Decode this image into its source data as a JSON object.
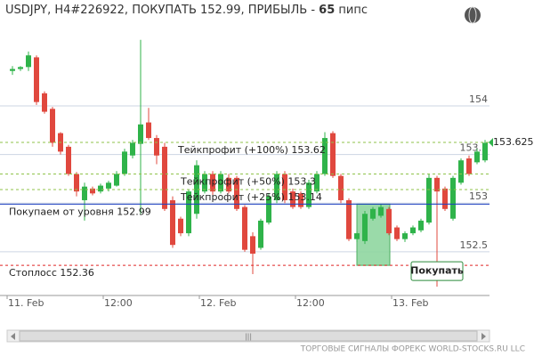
{
  "chart_data": {
    "type": "candlestick",
    "title": "USDJPY, H4#226922, ПОКУПАТЬ 152.99, ПРИБЫЛЬ -",
    "profit_pips": 65,
    "profit_unit": "пипс",
    "categories": [
      "11. Feb",
      null,
      null,
      null,
      null,
      null,
      null,
      null,
      null,
      null,
      null,
      null,
      "12:00",
      null,
      null,
      null,
      null,
      null,
      null,
      null,
      null,
      null,
      null,
      null,
      "12. Feb",
      null,
      null,
      null,
      null,
      null,
      null,
      null,
      null,
      null,
      null,
      null,
      "12:00",
      null,
      null,
      null,
      null,
      null,
      null,
      null,
      null,
      null,
      null,
      null,
      "13. Feb",
      null,
      null,
      null,
      null,
      null,
      null,
      null,
      null,
      null,
      null,
      null
    ],
    "open": [
      154.36,
      154.38,
      154.4,
      154.5,
      154.13,
      153.97,
      153.72,
      153.58,
      153.3,
      153.03,
      153.15,
      153.12,
      153.15,
      153.18,
      153.3,
      153.49,
      153.61,
      153.83,
      153.67,
      153.58,
      153.03,
      152.84,
      152.69,
      152.89,
      153.12,
      153.3,
      153.12,
      153.26,
      153.26,
      152.96,
      152.66,
      152.54,
      152.8,
      153.03,
      153.3,
      153.12,
      153.1,
      152.96,
      153.12,
      153.3,
      153.72,
      153.28,
      153.03,
      152.63,
      152.61,
      152.84,
      152.87,
      152.94,
      152.75,
      152.63,
      152.69,
      152.72,
      152.8,
      153.26,
      153.15,
      152.84,
      153.21,
      153.46,
      153.42,
      153.44
    ],
    "high": [
      154.41,
      154.41,
      154.56,
      154.52,
      154.15,
      153.99,
      153.73,
      153.6,
      153.32,
      153.21,
      153.17,
      153.2,
      153.23,
      153.33,
      153.56,
      153.65,
      154.68,
      153.98,
      153.7,
      153.62,
      153.07,
      152.86,
      153.14,
      153.44,
      153.33,
      153.33,
      153.33,
      153.3,
      153.28,
      152.98,
      152.7,
      152.84,
      153.1,
      153.33,
      153.33,
      153.15,
      153.12,
      153.24,
      153.33,
      153.73,
      153.74,
      153.3,
      153.05,
      152.71,
      152.92,
      152.96,
      152.99,
      152.96,
      152.77,
      152.71,
      152.77,
      152.84,
      153.3,
      153.28,
      153.17,
      153.28,
      153.46,
      153.49,
      153.56,
      153.65
    ],
    "low": [
      154.32,
      154.36,
      154.36,
      154.01,
      153.92,
      153.58,
      153.5,
      153.28,
      153.07,
      152.82,
      153.08,
      153.1,
      153.12,
      153.17,
      153.28,
      153.46,
      152.89,
      153.65,
      153.4,
      152.92,
      152.54,
      152.66,
      152.66,
      152.84,
      153.1,
      153.08,
      153.1,
      153.1,
      152.92,
      152.5,
      152.27,
      152.52,
      152.78,
      153.0,
      153.0,
      152.94,
      152.94,
      152.94,
      153.1,
      153.28,
      153.26,
      153.0,
      152.61,
      152.6,
      152.58,
      152.82,
      152.85,
      152.67,
      152.61,
      152.6,
      152.67,
      152.7,
      152.78,
      152.14,
      152.92,
      152.82,
      153.19,
      153.28,
      153.4,
      153.42
    ],
    "close": [
      154.38,
      154.4,
      154.52,
      154.04,
      153.94,
      153.62,
      153.53,
      153.3,
      153.12,
      153.17,
      153.1,
      153.18,
      153.21,
      153.3,
      153.53,
      153.62,
      153.81,
      153.67,
      153.49,
      152.94,
      152.57,
      152.69,
      153.12,
      153.39,
      153.3,
      153.12,
      153.3,
      153.12,
      152.94,
      152.52,
      152.48,
      152.82,
      153.07,
      153.3,
      153.03,
      152.96,
      152.96,
      153.21,
      153.3,
      153.67,
      153.28,
      153.03,
      152.63,
      152.69,
      152.89,
      152.94,
      152.96,
      152.69,
      152.63,
      152.69,
      152.75,
      152.82,
      153.26,
      153.12,
      152.94,
      153.26,
      153.44,
      153.3,
      153.53,
      153.62
    ],
    "up_color": "#2fb34a",
    "down_color": "#e0483e",
    "ylim": [
      152.05,
      154.87
    ],
    "yticks": [
      152.5,
      153,
      153.5,
      154
    ],
    "grid": true,
    "levels": [
      {
        "label": "Тейкпрофит (+100%) 153.62",
        "value": 153.625,
        "color": "#8fc34a"
      },
      {
        "label": "Тейкпрофит (+50%) 153.3",
        "value": 153.3,
        "color": "#8fc34a"
      },
      {
        "label": "Тейкпрофит (+25%) 153.14",
        "value": 153.14,
        "color": "#8fc34a"
      },
      {
        "label": "Покупаем от уровня 152.99",
        "value": 152.99,
        "color": "#1b3fc0"
      },
      {
        "label": "Стоплосс 152.36",
        "value": 152.36,
        "color": "#e02424"
      }
    ],
    "button": "Покупать",
    "footer": "ТОРГОВЫЕ СИГНАЛЫ ФОРЕКС WORLD-STOCKS.RU LLC"
  }
}
